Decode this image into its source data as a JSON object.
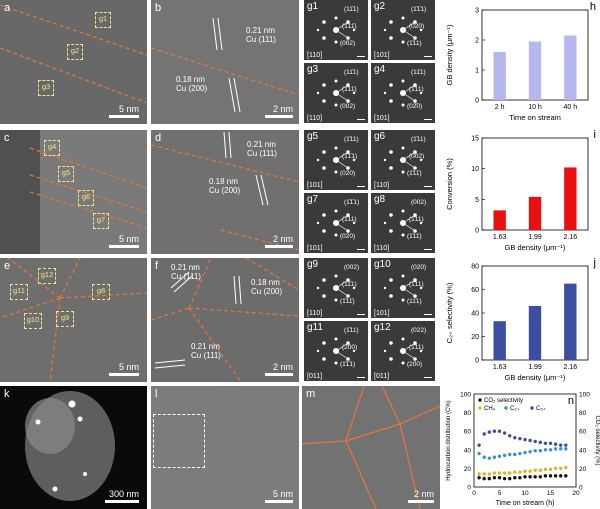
{
  "panels": {
    "a": {
      "label": "a",
      "scale": "5 nm",
      "boxes": [
        "g1",
        "g2",
        "g3"
      ]
    },
    "b": {
      "label": "b",
      "scale": "2 nm",
      "ann1_a": "0.21 nm",
      "ann1_b": "Cu (111)",
      "ann2_a": "0.18 nm",
      "ann2_b": "Cu (200)"
    },
    "c": {
      "label": "c",
      "scale": "5 nm",
      "boxes": [
        "g4",
        "g5",
        "g6",
        "g7"
      ]
    },
    "d": {
      "label": "d",
      "scale": "2 nm",
      "ann1_a": "0.21 nm",
      "ann1_b": "Cu (111)",
      "ann2_a": "0.18 nm",
      "ann2_b": "Cu (200)"
    },
    "e": {
      "label": "e",
      "scale": "5 nm",
      "boxes": [
        "g12",
        "g11",
        "g8",
        "g10",
        "g9"
      ]
    },
    "f": {
      "label": "f",
      "scale": "2 nm",
      "ann1_a": "0.21 nm",
      "ann1_b": "Cu (111)",
      "ann2_a": "0.18 nm",
      "ann2_b": "Cu (200)",
      "ann3_a": "0.21 nm",
      "ann3_b": "Cu (111)"
    },
    "k": {
      "label": "k",
      "scale": "300 nm"
    },
    "l": {
      "label": "l",
      "scale": "5 nm"
    },
    "m": {
      "label": "m",
      "scale": "2 nm"
    }
  },
  "fft": [
    {
      "label": "g1",
      "zone": "[110]",
      "hkl": [
        "(11̄1)",
        "(1̄11̄)",
        "(002)"
      ]
    },
    {
      "label": "g2",
      "zone": "[101]",
      "hkl": [
        "(1̄1̄1)",
        "(020)",
        "(1̄11)"
      ]
    },
    {
      "label": "g3",
      "zone": "[110]",
      "hkl": [
        "(11̄1)",
        "(1̄11̄)",
        "(002)"
      ]
    },
    {
      "label": "g4",
      "zone": "[101]",
      "hkl": [
        "(11̄1)",
        "(1̄11)",
        "(02̄0)"
      ]
    },
    {
      "label": "g5",
      "zone": "[101]",
      "hkl": [
        "(1̄11)",
        "(1̄1̄1)",
        "(020)"
      ]
    },
    {
      "label": "g6",
      "zone": "[110]",
      "hkl": [
        "(1̄11)",
        "(002)",
        "(1̄11̄)"
      ]
    },
    {
      "label": "g7",
      "zone": "[101]",
      "hkl": [
        "(1̄1̄1)",
        "(1̄11)",
        "(020)"
      ]
    },
    {
      "label": "g8",
      "zone": "[110]",
      "hkl": [
        "(002)",
        "(1̄11)",
        "(1̄11̄)"
      ]
    },
    {
      "label": "g9",
      "zone": "[110]",
      "hkl": [
        "(002)",
        "(11̄1)",
        "(1̄11̄)"
      ]
    },
    {
      "label": "g10",
      "zone": "[101]",
      "hkl": [
        "(020)",
        "(1̄11)",
        "(11̄1)"
      ]
    },
    {
      "label": "g11",
      "zone": "[011]",
      "hkl": [
        "(1̄11)",
        "(200)",
        "(1̄1̄1)"
      ]
    },
    {
      "label": "g12",
      "zone": "[011]",
      "hkl": [
        "(022)",
        "(1̄11)",
        "(200)"
      ]
    }
  ],
  "chart_data": [
    {
      "panel": "h",
      "type": "bar",
      "categories": [
        "2 h",
        "10 h",
        "40 h"
      ],
      "values": [
        1.6,
        1.95,
        2.15
      ],
      "ylabel": "GB density (μm⁻¹)",
      "xlabel": "Time on stream",
      "ylim": [
        0,
        3
      ],
      "yticks": [
        "0",
        "1",
        "2",
        "3"
      ],
      "color": "#b7b7f0"
    },
    {
      "panel": "i",
      "type": "bar",
      "categories": [
        "1.63",
        "1.99",
        "2.16"
      ],
      "values": [
        3.2,
        5.4,
        10.2
      ],
      "ylabel": "Conversion (%)",
      "xlabel": "GB density (μm⁻¹)",
      "ylim": [
        0,
        15
      ],
      "yticks": [
        "0",
        "5",
        "10",
        "15"
      ],
      "color": "#e81010"
    },
    {
      "panel": "j",
      "type": "bar",
      "categories": [
        "1.63",
        "1.99",
        "2.16"
      ],
      "values": [
        33,
        46,
        65
      ],
      "ylabel": "C₂₊ selectivity (%)",
      "xlabel": "GB density (μm⁻¹)",
      "ylim": [
        0,
        80
      ],
      "yticks": [
        "0",
        "20",
        "40",
        "60",
        "80"
      ],
      "color": "#3b4ea0"
    },
    {
      "panel": "n",
      "type": "scatter",
      "xlabel": "Time on stream (h)",
      "ylabel": "Hydrocarbon distribution (C%)",
      "y2label": "CO₂ selectivity (%)",
      "xlim": [
        0,
        20
      ],
      "ylim": [
        0,
        100
      ],
      "y2lim": [
        0,
        100
      ],
      "xticks": [
        "0",
        "5",
        "10",
        "15",
        "20"
      ],
      "yticks": [
        "0",
        "20",
        "40",
        "60",
        "80",
        "100"
      ],
      "series": [
        {
          "name": "CO₂ selectivity",
          "color": "#111111",
          "x": [
            1,
            2,
            3,
            4,
            5,
            6,
            7,
            8,
            9,
            10,
            11,
            12,
            13,
            14,
            15,
            16,
            17,
            18
          ],
          "y": [
            10,
            9,
            9,
            10,
            10,
            9,
            9,
            10,
            10,
            11,
            11,
            11,
            11,
            12,
            12,
            12,
            12,
            12
          ]
        },
        {
          "name": "CH₄",
          "color": "#e8b020",
          "x": [
            1,
            2,
            3,
            4,
            5,
            6,
            7,
            8,
            9,
            10,
            11,
            12,
            13,
            14,
            15,
            16,
            17,
            18
          ],
          "y": [
            14,
            14,
            14,
            15,
            15,
            15,
            15,
            16,
            16,
            17,
            17,
            18,
            18,
            19,
            19,
            20,
            20,
            21
          ]
        },
        {
          "name": "C₂₊",
          "color": "#3a8fd8",
          "x": [
            1,
            2,
            3,
            4,
            5,
            6,
            7,
            8,
            9,
            10,
            11,
            12,
            13,
            14,
            15,
            16,
            17,
            18
          ],
          "y": [
            36,
            32,
            31,
            32,
            33,
            34,
            35,
            35,
            36,
            37,
            38,
            39,
            39,
            40,
            40,
            41,
            41,
            41
          ]
        },
        {
          "name": "C₅₊",
          "color": "#3b4ea0",
          "x": [
            1,
            2,
            3,
            4,
            5,
            6,
            7,
            8,
            9,
            10,
            11,
            12,
            13,
            14,
            15,
            16,
            17,
            18
          ],
          "y": [
            45,
            57,
            59,
            60,
            60,
            58,
            55,
            53,
            52,
            51,
            50,
            49,
            48,
            47,
            47,
            46,
            45,
            45
          ]
        }
      ]
    }
  ]
}
